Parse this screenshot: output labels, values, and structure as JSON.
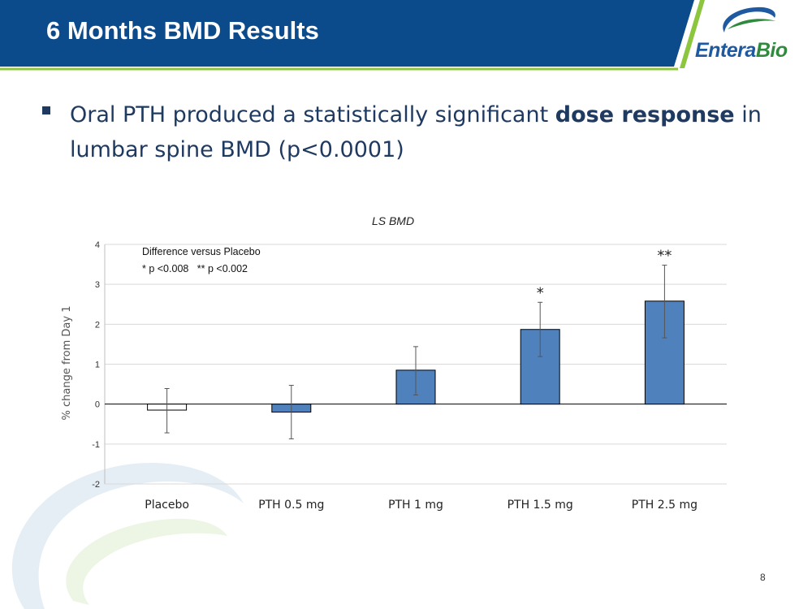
{
  "slide": {
    "title": "6 Months BMD Results",
    "page_number": "8"
  },
  "logo": {
    "text_part1": "Entera",
    "text_part2": "Bio"
  },
  "bullet": {
    "text_before": "Oral PTH produced a statistically significant ",
    "text_bold": "dose response",
    "text_after": " in lumbar spine BMD (p<0.0001)"
  },
  "colors": {
    "banner": "#0b4a8b",
    "accent_green": "#8cc63f",
    "bar_fill": "#4f81bd",
    "placebo_fill": "#ffffff"
  },
  "chart_data": {
    "type": "bar",
    "title": "LS BMD",
    "ylabel": "% change from Day 1",
    "xlabel": "",
    "categories": [
      "Placebo",
      "PTH 0.5 mg",
      "PTH 1 mg",
      "PTH 1.5 mg",
      "PTH 2.5 mg"
    ],
    "values": [
      -0.15,
      -0.2,
      0.85,
      1.87,
      2.58
    ],
    "error_low": [
      -0.72,
      -0.87,
      0.23,
      1.19,
      1.66
    ],
    "error_high": [
      0.39,
      0.47,
      1.44,
      2.55,
      3.48
    ],
    "significance": [
      "",
      "",
      "",
      "*",
      "**"
    ],
    "ylim": [
      -2,
      4
    ],
    "yticks": [
      -2,
      -1,
      0,
      1,
      2,
      3,
      4
    ],
    "grid": true,
    "annotation": {
      "line1": "Difference versus Placebo",
      "line2": "* p <0.008   ** p <0.002"
    }
  }
}
